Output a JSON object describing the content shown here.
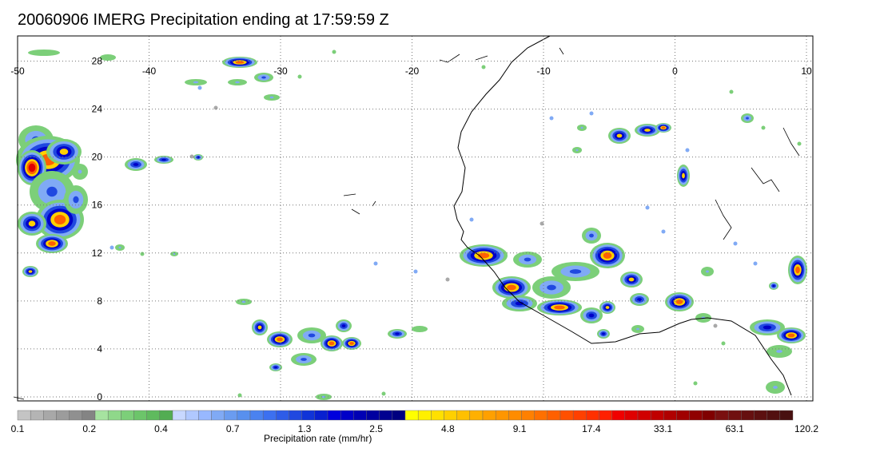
{
  "title": "20060906 IMERG Precipitation ending at 17:59:59 Z",
  "map": {
    "lon_range": [
      -50,
      10
    ],
    "lat_range": [
      0,
      30
    ],
    "lon_ticks": [
      -50,
      -40,
      -30,
      -20,
      -10,
      0,
      10
    ],
    "lat_ticks": [
      0,
      4,
      8,
      12,
      16,
      20,
      24,
      28
    ],
    "lon_labels": [
      "-50",
      "-40",
      "-30",
      "-20",
      "-10",
      "0",
      "10"
    ],
    "lat_labels": [
      "0",
      "4",
      "8",
      "12",
      "16",
      "20",
      "24",
      "28"
    ],
    "grid": "dotted",
    "background": "#ffffff"
  },
  "colorbar": {
    "title": "Precipitation rate (mm/hr)",
    "tick_labels": [
      "0.1",
      "0.2",
      "0.4",
      "0.7",
      "1.3",
      "2.5",
      "4.8",
      "9.1",
      "17.4",
      "33.1",
      "63.1",
      "120.2"
    ],
    "colors": [
      "#c4c4c4",
      "#b4b4b4",
      "#a8a8a8",
      "#9c9c9c",
      "#909090",
      "#848484",
      "#a6e3a0",
      "#8fd88a",
      "#7ccf79",
      "#6cc56a",
      "#5fba5e",
      "#52ad52",
      "#c8d8ff",
      "#b0c8ff",
      "#98b8ff",
      "#80aaf5",
      "#6a9cf0",
      "#5890ee",
      "#4a82f0",
      "#3c70f0",
      "#2e5ce8",
      "#2048e0",
      "#1034d8",
      "#0820d0",
      "#0000dd",
      "#0000c8",
      "#0000b4",
      "#0000a0",
      "#000090",
      "#000080",
      "#ffff00",
      "#fff000",
      "#ffe000",
      "#ffd000",
      "#ffc000",
      "#ffb000",
      "#ffa000",
      "#ff9600",
      "#ff8c00",
      "#ff8000",
      "#ff7000",
      "#ff6000",
      "#ff5000",
      "#ff4000",
      "#ff3000",
      "#ff2000",
      "#f00000",
      "#e00000",
      "#d00000",
      "#c00000",
      "#b00000",
      "#a00000",
      "#900000",
      "#800000",
      "#7a1010",
      "#701010",
      "#661010",
      "#5c1010",
      "#521010",
      "#481010"
    ]
  },
  "precip_colors": {
    "low": "#7ccf79",
    "light": "#80aaf5",
    "moderate": "#2048e0",
    "heavy": "#0000c8",
    "very_heavy": "#ffd000",
    "extreme": "#ff6000",
    "max": "#e00000",
    "trace": "#a8a8a8"
  },
  "coastline_color": "#000000"
}
